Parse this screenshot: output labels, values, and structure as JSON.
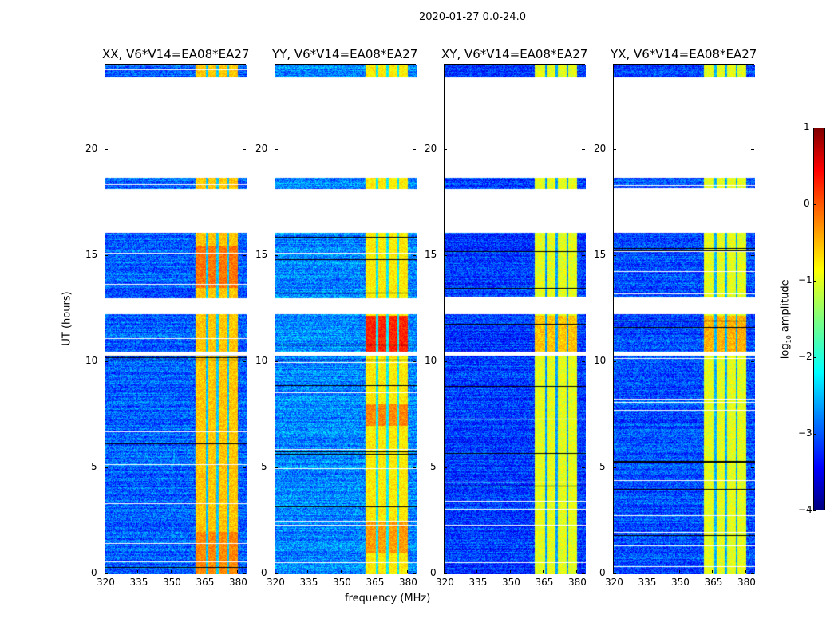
{
  "suptitle": "2020-01-27 0.0-24.0",
  "chart_data": [
    {
      "type": "heatmap",
      "title": "XX, V6*V14=EA08*EA27",
      "level": -2.9,
      "band_level": -0.6,
      "hot": [
        [
          0,
          2,
          -0.3
        ],
        [
          13.5,
          15.5,
          -0.2
        ]
      ]
    },
    {
      "type": "heatmap",
      "title": "YY, V6*V14=EA08*EA27",
      "level": -2.7,
      "band_level": -0.8,
      "hot": [
        [
          10.4,
          12.2,
          0.2
        ],
        [
          1,
          2.5,
          -0.4
        ],
        [
          7,
          8,
          -0.3
        ]
      ]
    },
    {
      "type": "heatmap",
      "title": "XY, V6*V14=EA08*EA27",
      "level": -3.1,
      "band_level": -1.0,
      "hot": [
        [
          10.4,
          12.2,
          -0.6
        ]
      ]
    },
    {
      "type": "heatmap",
      "title": "YX, V6*V14=EA08*EA27",
      "level": -3.0,
      "band_level": -1.0,
      "hot": [
        [
          10.4,
          12.2,
          -0.5
        ]
      ]
    }
  ],
  "shared": {
    "xlabel": "frequency (MHz)",
    "ylabel": "UT (hours)",
    "xlim": [
      320,
      384
    ],
    "ylim": [
      0,
      24
    ],
    "xticks": [
      "320",
      "335",
      "350",
      "365",
      "380"
    ],
    "xtick_values": [
      320,
      335,
      350,
      365,
      380
    ],
    "yticks": [
      "0",
      "5",
      "10",
      "15",
      "20"
    ],
    "ytick_values": [
      0,
      5,
      10,
      15,
      20
    ],
    "band_mhz": [
      360.5,
      380
    ],
    "band_gaps_mhz": [
      366,
      370.5,
      375.5
    ],
    "data_gaps_hours": [
      [
        22.6,
        23.4
      ],
      [
        18.7,
        22.6
      ],
      [
        16.1,
        18.15
      ],
      [
        13.0,
        12.25
      ],
      [
        10.3,
        10.5
      ]
    ],
    "colorbar": {
      "label": "log10 amplitude",
      "label_main": "log",
      "label_sub": "10",
      "label_tail": " amplitude",
      "range": [
        -4,
        1
      ],
      "ticks": [
        "1",
        "0",
        "−1",
        "−2",
        "−3",
        "−4"
      ],
      "tick_values": [
        1,
        0,
        -1,
        -2,
        -3,
        -4
      ]
    }
  }
}
